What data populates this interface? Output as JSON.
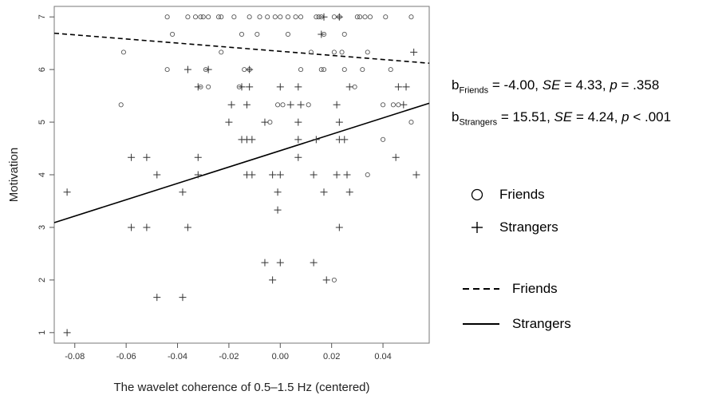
{
  "chart_data": {
    "type": "scatter",
    "xlabel": "The wavelet coherence of 0.5–1.5 Hz (centered)",
    "ylabel": "Motivation",
    "xlim": [
      -0.088,
      0.058
    ],
    "ylim": [
      0.8,
      7.2
    ],
    "x_ticks": [
      -0.08,
      -0.06,
      -0.04,
      -0.02,
      0.0,
      0.02,
      0.04
    ],
    "x_tick_labels": [
      "-0.08",
      "-0.06",
      "-0.04",
      "-0.02",
      "0.00",
      "0.02",
      "0.04"
    ],
    "y_ticks": [
      1,
      2,
      3,
      4,
      5,
      6,
      7
    ],
    "y_tick_labels": [
      "1",
      "2",
      "3",
      "4",
      "5",
      "6",
      "7"
    ],
    "grid": false,
    "series": [
      {
        "name": "Friends",
        "marker": "circle",
        "points": [
          [
            -0.044,
            7
          ],
          [
            -0.036,
            7
          ],
          [
            -0.033,
            7
          ],
          [
            -0.031,
            7
          ],
          [
            -0.03,
            7
          ],
          [
            -0.028,
            7
          ],
          [
            -0.024,
            7
          ],
          [
            -0.023,
            7
          ],
          [
            -0.018,
            7
          ],
          [
            -0.012,
            7
          ],
          [
            -0.008,
            7
          ],
          [
            -0.005,
            7
          ],
          [
            -0.002,
            7
          ],
          [
            0.0,
            7
          ],
          [
            0.003,
            7
          ],
          [
            0.006,
            7
          ],
          [
            0.008,
            7
          ],
          [
            0.014,
            7
          ],
          [
            0.015,
            7
          ],
          [
            0.016,
            7
          ],
          [
            0.021,
            7
          ],
          [
            0.023,
            7
          ],
          [
            0.03,
            7
          ],
          [
            0.031,
            7
          ],
          [
            0.033,
            7
          ],
          [
            0.035,
            7
          ],
          [
            0.041,
            7
          ],
          [
            0.051,
            7
          ],
          [
            -0.042,
            6.67
          ],
          [
            -0.015,
            6.67
          ],
          [
            -0.009,
            6.67
          ],
          [
            0.003,
            6.67
          ],
          [
            0.017,
            6.67
          ],
          [
            0.025,
            6.67
          ],
          [
            -0.061,
            6.33
          ],
          [
            -0.023,
            6.33
          ],
          [
            0.012,
            6.33
          ],
          [
            0.021,
            6.33
          ],
          [
            0.024,
            6.33
          ],
          [
            0.034,
            6.33
          ],
          [
            -0.044,
            6
          ],
          [
            -0.029,
            6
          ],
          [
            -0.014,
            6
          ],
          [
            -0.012,
            6
          ],
          [
            0.008,
            6
          ],
          [
            0.016,
            6
          ],
          [
            0.017,
            6
          ],
          [
            0.025,
            6
          ],
          [
            0.032,
            6
          ],
          [
            0.043,
            6
          ],
          [
            -0.031,
            5.67
          ],
          [
            -0.028,
            5.67
          ],
          [
            -0.016,
            5.67
          ],
          [
            0.029,
            5.67
          ],
          [
            -0.062,
            5.33
          ],
          [
            -0.001,
            5.33
          ],
          [
            0.001,
            5.33
          ],
          [
            0.011,
            5.33
          ],
          [
            0.04,
            5.33
          ],
          [
            0.044,
            5.33
          ],
          [
            0.046,
            5.33
          ],
          [
            -0.004,
            5
          ],
          [
            0.051,
            5
          ],
          [
            0.04,
            4.67
          ],
          [
            0.034,
            4
          ],
          [
            0.021,
            2
          ]
        ]
      },
      {
        "name": "Strangers",
        "marker": "plus",
        "points": [
          [
            0.017,
            7
          ],
          [
            0.023,
            7
          ],
          [
            0.016,
            6.67
          ],
          [
            0.052,
            6.33
          ],
          [
            -0.036,
            6
          ],
          [
            -0.028,
            6
          ],
          [
            -0.012,
            6
          ],
          [
            -0.032,
            5.67
          ],
          [
            -0.015,
            5.67
          ],
          [
            -0.012,
            5.67
          ],
          [
            0.0,
            5.67
          ],
          [
            0.007,
            5.67
          ],
          [
            0.027,
            5.67
          ],
          [
            0.046,
            5.67
          ],
          [
            0.049,
            5.67
          ],
          [
            -0.019,
            5.33
          ],
          [
            -0.013,
            5.33
          ],
          [
            0.004,
            5.33
          ],
          [
            0.008,
            5.33
          ],
          [
            0.022,
            5.33
          ],
          [
            0.048,
            5.33
          ],
          [
            -0.02,
            5
          ],
          [
            -0.006,
            5
          ],
          [
            0.007,
            5
          ],
          [
            0.023,
            5
          ],
          [
            -0.015,
            4.67
          ],
          [
            -0.013,
            4.67
          ],
          [
            -0.011,
            4.67
          ],
          [
            0.007,
            4.67
          ],
          [
            0.014,
            4.67
          ],
          [
            0.023,
            4.67
          ],
          [
            0.025,
            4.67
          ],
          [
            -0.058,
            4.33
          ],
          [
            -0.052,
            4.33
          ],
          [
            -0.032,
            4.33
          ],
          [
            0.007,
            4.33
          ],
          [
            0.045,
            4.33
          ],
          [
            -0.048,
            4
          ],
          [
            -0.032,
            4
          ],
          [
            -0.013,
            4
          ],
          [
            -0.011,
            4
          ],
          [
            -0.003,
            4
          ],
          [
            0.0,
            4
          ],
          [
            0.013,
            4
          ],
          [
            0.022,
            4
          ],
          [
            0.026,
            4
          ],
          [
            0.053,
            4
          ],
          [
            -0.083,
            3.67
          ],
          [
            -0.038,
            3.67
          ],
          [
            -0.001,
            3.67
          ],
          [
            0.017,
            3.67
          ],
          [
            0.027,
            3.67
          ],
          [
            -0.001,
            3.33
          ],
          [
            -0.058,
            3
          ],
          [
            -0.052,
            3
          ],
          [
            -0.036,
            3
          ],
          [
            0.023,
            3
          ],
          [
            -0.006,
            2.33
          ],
          [
            0.0,
            2.33
          ],
          [
            0.013,
            2.33
          ],
          [
            -0.003,
            2
          ],
          [
            0.018,
            2
          ],
          [
            -0.048,
            1.67
          ],
          [
            -0.038,
            1.67
          ],
          [
            -0.083,
            1
          ]
        ]
      }
    ],
    "fit_lines": [
      {
        "name": "Friends",
        "style": "dashed",
        "x": [
          -0.088,
          0.058
        ],
        "y": [
          6.69,
          6.12
        ]
      },
      {
        "name": "Strangers",
        "style": "solid",
        "x": [
          -0.088,
          0.058
        ],
        "y": [
          3.09,
          5.36
        ]
      }
    ],
    "annotations": {
      "friends": {
        "b": "b",
        "sub": "Friends",
        "rest1": " = -4.00, ",
        "se_label": "SE",
        "rest2": " = 4.33, ",
        "p_label": "p",
        "rest3": " = .358"
      },
      "strangers": {
        "b": "b",
        "sub": "Strangers",
        "rest1": " = 15.51, ",
        "se_label": "SE",
        "rest2": " = 4.24, ",
        "p_label": "p",
        "rest3": " < .001"
      }
    },
    "legend": {
      "markers": [
        {
          "symbol": "circle",
          "label": "Friends"
        },
        {
          "symbol": "plus",
          "label": "Strangers"
        }
      ],
      "lines": [
        {
          "style": "dashed",
          "label": "Friends"
        },
        {
          "style": "solid",
          "label": "Strangers"
        }
      ]
    }
  }
}
